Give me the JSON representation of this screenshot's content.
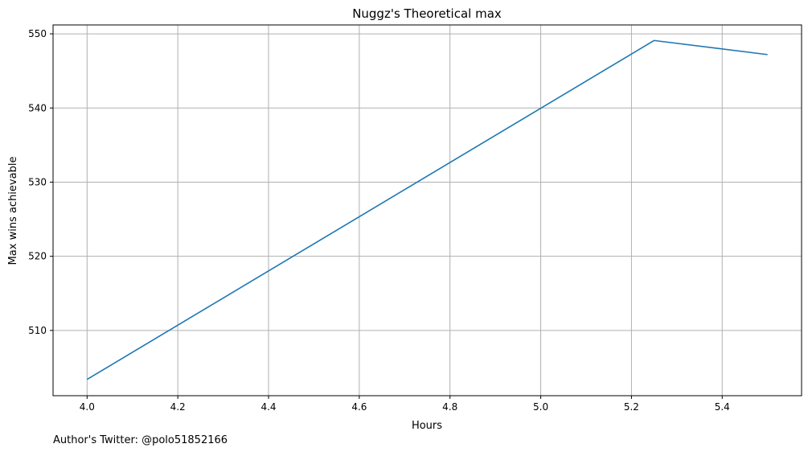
{
  "chart_data": {
    "type": "line",
    "title": "Nuggz's Theoretical max",
    "xlabel": "Hours",
    "ylabel": "Max wins achievable",
    "xlim": [
      3.925,
      5.575
    ],
    "ylim": [
      501.2,
      551.2
    ],
    "xticks": [
      4.0,
      4.2,
      4.4,
      4.6,
      4.8,
      5.0,
      5.2,
      5.4
    ],
    "xtick_labels": [
      "4.0",
      "4.2",
      "4.4",
      "4.6",
      "4.8",
      "5.0",
      "5.2",
      "5.4"
    ],
    "yticks": [
      510,
      520,
      530,
      540,
      550
    ],
    "ytick_labels": [
      "510",
      "520",
      "530",
      "540",
      "550"
    ],
    "grid": true,
    "line_color": "#1f77b4",
    "series": [
      {
        "x": [
          4.0,
          5.25,
          5.5
        ],
        "y": [
          503.4,
          549.1,
          547.2
        ]
      }
    ]
  },
  "footnote": "Author's Twitter: @polo51852166"
}
